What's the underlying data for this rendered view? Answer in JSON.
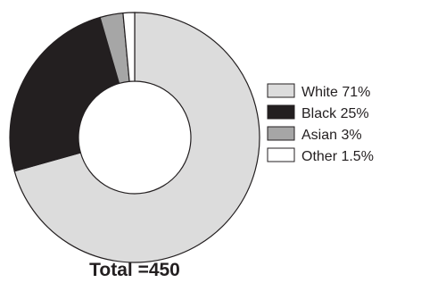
{
  "chart_data": {
    "type": "pie",
    "donut": true,
    "slices": [
      {
        "label": "White 71%",
        "value": 71,
        "color": "#dcdcdc"
      },
      {
        "label": "Black 25%",
        "value": 25,
        "color": "#231f20"
      },
      {
        "label": "Asian 3%",
        "value": 3,
        "color": "#a6a6a6"
      },
      {
        "label": "Other 1.5%",
        "value": 1.5,
        "color": "#ffffff"
      }
    ],
    "total_label": "Total =450",
    "legend_position": "right"
  }
}
